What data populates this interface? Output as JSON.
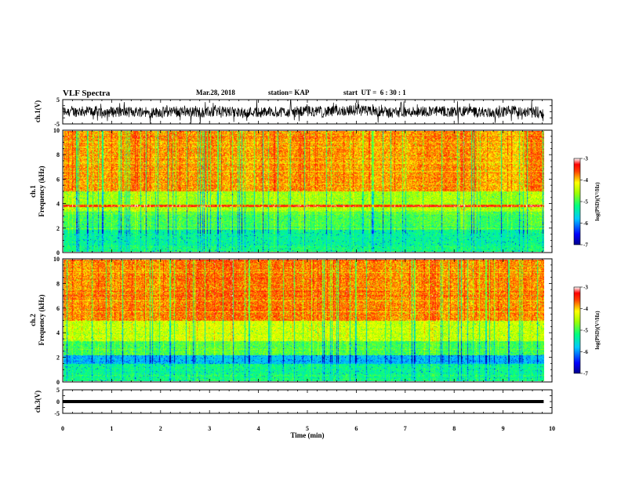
{
  "header": {
    "title": "VLF Spectra",
    "date": "Mar.28, 2018",
    "station": "station= KAP",
    "start": "start  UT =  6 : 30 : 1"
  },
  "chart_data": [
    {
      "type": "line",
      "ylabel": "ch.1(V)",
      "xlim": [
        0,
        10
      ],
      "ylim": [
        -5,
        5
      ],
      "yticks": [
        "5",
        "-5"
      ],
      "description_of_signal": "noisy waveform oscillating roughly between -4 and 4 V"
    },
    {
      "type": "heatmap",
      "ylabel": "ch.1\nFrequency (kHz)",
      "ylabel_line1": "ch.1",
      "ylabel_line2": "Frequency (kHz)",
      "xlim": [
        0,
        10
      ],
      "ylim": [
        0,
        10
      ],
      "yticks": [
        "0",
        "2",
        "4",
        "6",
        "8",
        "10"
      ],
      "data_xmax": 9.83,
      "colorbar": {
        "label": "log(PSD)(V²/Hz)",
        "range": [
          -7,
          -3
        ],
        "ticks": [
          "-3",
          "-4",
          "-5",
          "-6",
          "-7"
        ]
      }
    },
    {
      "type": "heatmap",
      "ylabel": "ch.2\nFrequency (kHz)",
      "ylabel_line1": "ch.2",
      "ylabel_line2": "Frequency (kHz)",
      "xlim": [
        0,
        10
      ],
      "ylim": [
        0,
        10
      ],
      "yticks": [
        "0",
        "2",
        "4",
        "6",
        "8",
        "10"
      ],
      "data_xmax": 9.83,
      "colorbar": {
        "label": "log(PSD)(V²/Hz)",
        "range": [
          -7,
          -3
        ],
        "ticks": [
          "-3",
          "-4",
          "-5",
          "-6",
          "-7"
        ]
      }
    },
    {
      "type": "line",
      "ylabel": "ch.3(V)",
      "xlim": [
        0,
        10
      ],
      "ylim": [
        -5,
        5
      ],
      "yticks": [
        "5",
        "0",
        "-5"
      ],
      "constant_value": 0
    }
  ],
  "xaxis": {
    "label": "Time  (min)",
    "ticks": [
      "0",
      "1",
      "2",
      "3",
      "4",
      "5",
      "6",
      "7",
      "8",
      "9",
      "10"
    ]
  },
  "colors": {
    "axis": "#000000",
    "trace": "#000000"
  }
}
